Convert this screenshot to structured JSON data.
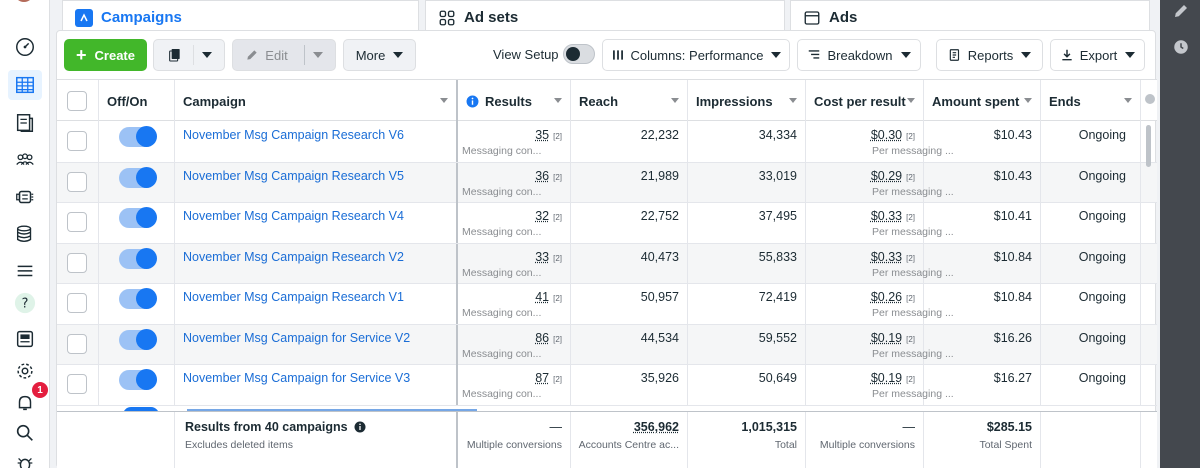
{
  "tabs": {
    "campaigns": "Campaigns",
    "adsets": "Ad sets",
    "ads": "Ads"
  },
  "toolbar": {
    "create": "Create",
    "edit": "Edit",
    "more": "More",
    "view_setup": "View Setup",
    "columns": "Columns: Performance",
    "breakdown": "Breakdown",
    "reports": "Reports",
    "export": "Export"
  },
  "headers": {
    "offon": "Off/On",
    "campaign": "Campaign",
    "results": "Results",
    "reach": "Reach",
    "impressions": "Impressions",
    "cpr": "Cost per result",
    "spent": "Amount spent",
    "ends": "Ends"
  },
  "rows": [
    {
      "name": "November Msg Campaign Research V6",
      "results": "35",
      "results_sub": "Messaging con...",
      "reach": "22,232",
      "impressions": "34,334",
      "cpr": "$0.30",
      "cpr_sub": "Per messaging ...",
      "spent": "$10.43",
      "ends": "Ongoing",
      "sup": "[2]"
    },
    {
      "name": "November Msg Campaign Research V5",
      "results": "36",
      "results_sub": "Messaging con...",
      "reach": "21,989",
      "impressions": "33,019",
      "cpr": "$0.29",
      "cpr_sub": "Per messaging ...",
      "spent": "$10.43",
      "ends": "Ongoing",
      "sup": "[2]"
    },
    {
      "name": "November Msg Campaign Research V4",
      "results": "32",
      "results_sub": "Messaging con...",
      "reach": "22,752",
      "impressions": "37,495",
      "cpr": "$0.33",
      "cpr_sub": "Per messaging ...",
      "spent": "$10.41",
      "ends": "Ongoing",
      "sup": "[2]"
    },
    {
      "name": "November Msg Campaign Research V2",
      "results": "33",
      "results_sub": "Messaging con...",
      "reach": "40,473",
      "impressions": "55,833",
      "cpr": "$0.33",
      "cpr_sub": "Per messaging ...",
      "spent": "$10.84",
      "ends": "Ongoing",
      "sup": "[2]"
    },
    {
      "name": "November Msg Campaign Research V1",
      "results": "41",
      "results_sub": "Messaging con...",
      "reach": "50,957",
      "impressions": "72,419",
      "cpr": "$0.26",
      "cpr_sub": "Per messaging ...",
      "spent": "$10.84",
      "ends": "Ongoing",
      "sup": "[2]"
    },
    {
      "name": "November Msg Campaign for Service V2",
      "results": "86",
      "results_sub": "Messaging con...",
      "reach": "44,534",
      "impressions": "59,552",
      "cpr": "$0.19",
      "cpr_sub": "Per messaging ...",
      "spent": "$16.26",
      "ends": "Ongoing",
      "sup": "[2]"
    },
    {
      "name": "November Msg Campaign for Service V3",
      "results": "87",
      "results_sub": "Messaging con...",
      "reach": "35,926",
      "impressions": "50,649",
      "cpr": "$0.19",
      "cpr_sub": "Per messaging ...",
      "spent": "$16.27",
      "ends": "Ongoing",
      "sup": "[2]"
    }
  ],
  "footer": {
    "title": "Results from 40 campaigns",
    "subtitle": "Excludes deleted items",
    "results": "—",
    "results_sub": "Multiple conversions",
    "reach": "356,962",
    "reach_sub": "Accounts Centre ac...",
    "impressions": "1,015,315",
    "impressions_sub": "Total",
    "cpr": "—",
    "cpr_sub": "Multiple conversions",
    "spent": "$285.15",
    "spent_sub": "Total Spent"
  },
  "nav": {
    "notification_count": "1"
  },
  "colors": {
    "accent": "#1877f2",
    "create": "#42b72a",
    "link": "#1a6dd6"
  }
}
